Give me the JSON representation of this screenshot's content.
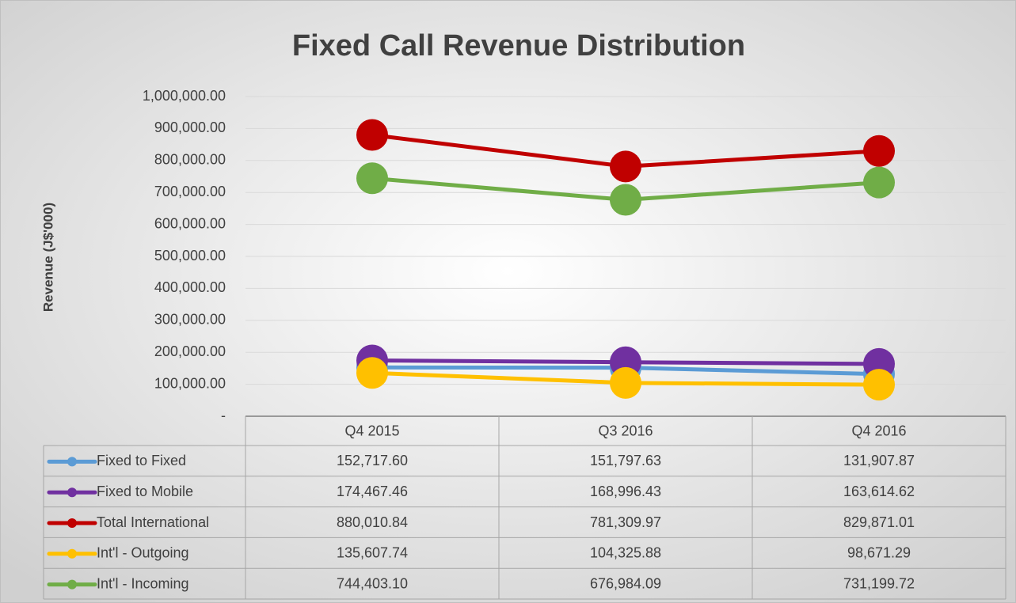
{
  "chart_data": {
    "type": "line",
    "title": "Fixed Call Revenue Distribution",
    "y_label": "Revenue (J$'000)",
    "categories": [
      "Q4 2015",
      "Q3 2016",
      "Q4 2016"
    ],
    "series": [
      {
        "name": "Fixed to Fixed",
        "color": "#5b9bd5",
        "values": [
          152717.6,
          151797.63,
          131907.87
        ],
        "value_labels": [
          "152,717.60",
          "151,797.63",
          "131,907.87"
        ]
      },
      {
        "name": "Fixed to Mobile",
        "color": "#7030a0",
        "values": [
          174467.46,
          168996.43,
          163614.62
        ],
        "value_labels": [
          "174,467.46",
          "168,996.43",
          "163,614.62"
        ]
      },
      {
        "name": "Total International",
        "color": "#c00000",
        "values": [
          880010.84,
          781309.97,
          829871.01
        ],
        "value_labels": [
          "880,010.84",
          "781,309.97",
          "829,871.01"
        ]
      },
      {
        "name": "Int'l - Outgoing",
        "color": "#ffc000",
        "values": [
          135607.74,
          104325.88,
          98671.29
        ],
        "value_labels": [
          "135,607.74",
          "104,325.88",
          "98,671.29"
        ]
      },
      {
        "name": "Int'l - Incoming",
        "color": "#70ad47",
        "values": [
          744403.1,
          676984.09,
          731199.72
        ],
        "value_labels": [
          "744,403.10",
          "676,984.09",
          "731,199.72"
        ]
      }
    ],
    "ylim": [
      0,
      1000000
    ],
    "yticks": [
      {
        "value": 0,
        "label": "-"
      },
      {
        "value": 100000,
        "label": "100,000.00"
      },
      {
        "value": 200000,
        "label": "200,000.00"
      },
      {
        "value": 300000,
        "label": "300,000.00"
      },
      {
        "value": 400000,
        "label": "400,000.00"
      },
      {
        "value": 500000,
        "label": "500,000.00"
      },
      {
        "value": 600000,
        "label": "600,000.00"
      },
      {
        "value": 700000,
        "label": "700,000.00"
      },
      {
        "value": 800000,
        "label": "800,000.00"
      },
      {
        "value": 900000,
        "label": "900,000.00"
      },
      {
        "value": 1000000,
        "label": "1,000,000.00"
      }
    ],
    "grid": true
  }
}
